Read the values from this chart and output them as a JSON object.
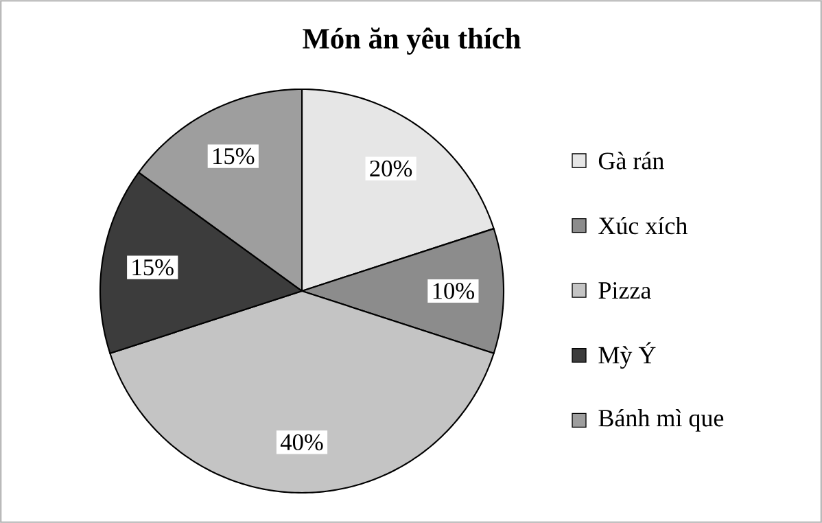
{
  "chart_data": {
    "type": "pie",
    "title": "Món ăn yêu thích",
    "categories": [
      "Gà rán",
      "Xúc xích",
      "Pizza",
      "Mỳ Ý",
      "Bánh mì que"
    ],
    "values": [
      20,
      10,
      40,
      15,
      15
    ],
    "value_labels": [
      "20%",
      "10%",
      "40%",
      "15%",
      "15%"
    ],
    "colors": [
      "#e6e6e6",
      "#8c8c8c",
      "#c4c4c4",
      "#3c3c3c",
      "#9e9e9e"
    ],
    "legend": "right"
  }
}
